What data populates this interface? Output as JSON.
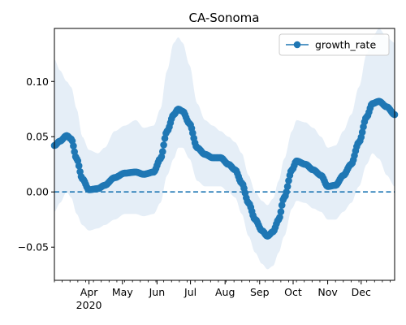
{
  "chart_data": {
    "type": "line",
    "title": "CA-Sonoma",
    "xlabel": "",
    "ylabel": "",
    "xlim": [
      "2020-03-01",
      "2020-12-31"
    ],
    "ylim": [
      -0.08,
      0.148
    ],
    "x_major_ticks": [
      {
        "date": "2020-04-01",
        "label": "Apr",
        "sublabel": "2020"
      },
      {
        "date": "2020-05-01",
        "label": "May",
        "sublabel": ""
      },
      {
        "date": "2020-06-01",
        "label": "Jun",
        "sublabel": ""
      },
      {
        "date": "2020-07-01",
        "label": "Jul",
        "sublabel": ""
      },
      {
        "date": "2020-08-01",
        "label": "Aug",
        "sublabel": ""
      },
      {
        "date": "2020-09-01",
        "label": "Sep",
        "sublabel": ""
      },
      {
        "date": "2020-10-01",
        "label": "Oct",
        "sublabel": ""
      },
      {
        "date": "2020-11-01",
        "label": "Nov",
        "sublabel": ""
      },
      {
        "date": "2020-12-01",
        "label": "Dec",
        "sublabel": ""
      }
    ],
    "y_ticks": [
      {
        "value": -0.05,
        "label": "−0.05"
      },
      {
        "value": 0.0,
        "label": "0.00"
      },
      {
        "value": 0.05,
        "label": "0.05"
      },
      {
        "value": 0.1,
        "label": "0.10"
      }
    ],
    "reference_line": {
      "y": 0.0,
      "style": "dashed",
      "color": "#1f77b4"
    },
    "legend": {
      "placement": "top-right",
      "entries": [
        "growth_rate"
      ]
    },
    "grid": false,
    "series": [
      {
        "name": "growth_rate",
        "color": "#1f77b4",
        "marker": "circle",
        "band_color": "#dce8f4",
        "knots": [
          {
            "x": "2020-03-01",
            "y": 0.042,
            "lo": -0.018,
            "hi": 0.12
          },
          {
            "x": "2020-03-06",
            "y": 0.046,
            "lo": -0.01,
            "hi": 0.11
          },
          {
            "x": "2020-03-12",
            "y": 0.051,
            "lo": 0.0,
            "hi": 0.1
          },
          {
            "x": "2020-03-16",
            "y": 0.048,
            "lo": -0.005,
            "hi": 0.095
          },
          {
            "x": "2020-03-21",
            "y": 0.03,
            "lo": -0.02,
            "hi": 0.075
          },
          {
            "x": "2020-03-26",
            "y": 0.012,
            "lo": -0.03,
            "hi": 0.05
          },
          {
            "x": "2020-04-01",
            "y": 0.002,
            "lo": -0.035,
            "hi": 0.038
          },
          {
            "x": "2020-04-09",
            "y": 0.003,
            "lo": -0.033,
            "hi": 0.035
          },
          {
            "x": "2020-04-15",
            "y": 0.006,
            "lo": -0.03,
            "hi": 0.04
          },
          {
            "x": "2020-04-24",
            "y": 0.013,
            "lo": -0.025,
            "hi": 0.055
          },
          {
            "x": "2020-05-03",
            "y": 0.017,
            "lo": -0.02,
            "hi": 0.06
          },
          {
            "x": "2020-05-13",
            "y": 0.018,
            "lo": -0.02,
            "hi": 0.065
          },
          {
            "x": "2020-05-20",
            "y": 0.016,
            "lo": -0.022,
            "hi": 0.058
          },
          {
            "x": "2020-05-29",
            "y": 0.018,
            "lo": -0.02,
            "hi": 0.06
          },
          {
            "x": "2020-06-04",
            "y": 0.03,
            "lo": -0.01,
            "hi": 0.075
          },
          {
            "x": "2020-06-10",
            "y": 0.055,
            "lo": 0.015,
            "hi": 0.11
          },
          {
            "x": "2020-06-16",
            "y": 0.07,
            "lo": 0.03,
            "hi": 0.135
          },
          {
            "x": "2020-06-20",
            "y": 0.075,
            "lo": 0.04,
            "hi": 0.14
          },
          {
            "x": "2020-06-24",
            "y": 0.073,
            "lo": 0.04,
            "hi": 0.135
          },
          {
            "x": "2020-06-30",
            "y": 0.062,
            "lo": 0.03,
            "hi": 0.115
          },
          {
            "x": "2020-07-07",
            "y": 0.04,
            "lo": 0.01,
            "hi": 0.08
          },
          {
            "x": "2020-07-14",
            "y": 0.034,
            "lo": 0.005,
            "hi": 0.065
          },
          {
            "x": "2020-07-21",
            "y": 0.031,
            "lo": 0.005,
            "hi": 0.06
          },
          {
            "x": "2020-07-28",
            "y": 0.031,
            "lo": 0.005,
            "hi": 0.055
          },
          {
            "x": "2020-08-04",
            "y": 0.025,
            "lo": 0.0,
            "hi": 0.05
          },
          {
            "x": "2020-08-10",
            "y": 0.02,
            "lo": -0.005,
            "hi": 0.045
          },
          {
            "x": "2020-08-16",
            "y": 0.008,
            "lo": -0.02,
            "hi": 0.035
          },
          {
            "x": "2020-08-22",
            "y": -0.01,
            "lo": -0.04,
            "hi": 0.015
          },
          {
            "x": "2020-08-28",
            "y": -0.025,
            "lo": -0.055,
            "hi": 0.0
          },
          {
            "x": "2020-09-03",
            "y": -0.035,
            "lo": -0.065,
            "hi": -0.008
          },
          {
            "x": "2020-09-08",
            "y": -0.04,
            "lo": -0.07,
            "hi": -0.012
          },
          {
            "x": "2020-09-13",
            "y": -0.036,
            "lo": -0.067,
            "hi": -0.006
          },
          {
            "x": "2020-09-18",
            "y": -0.025,
            "lo": -0.055,
            "hi": 0.01
          },
          {
            "x": "2020-09-23",
            "y": -0.005,
            "lo": -0.04,
            "hi": 0.03
          },
          {
            "x": "2020-09-30",
            "y": 0.02,
            "lo": -0.015,
            "hi": 0.055
          },
          {
            "x": "2020-10-04",
            "y": 0.028,
            "lo": -0.008,
            "hi": 0.065
          },
          {
            "x": "2020-10-12",
            "y": 0.025,
            "lo": -0.01,
            "hi": 0.063
          },
          {
            "x": "2020-10-19",
            "y": 0.02,
            "lo": -0.015,
            "hi": 0.058
          },
          {
            "x": "2020-10-26",
            "y": 0.015,
            "lo": -0.018,
            "hi": 0.05
          },
          {
            "x": "2020-11-01",
            "y": 0.005,
            "lo": -0.025,
            "hi": 0.04
          },
          {
            "x": "2020-11-08",
            "y": 0.006,
            "lo": -0.025,
            "hi": 0.042
          },
          {
            "x": "2020-11-15",
            "y": 0.015,
            "lo": -0.018,
            "hi": 0.055
          },
          {
            "x": "2020-11-22",
            "y": 0.025,
            "lo": -0.01,
            "hi": 0.07
          },
          {
            "x": "2020-11-29",
            "y": 0.045,
            "lo": 0.005,
            "hi": 0.095
          },
          {
            "x": "2020-12-06",
            "y": 0.068,
            "lo": 0.025,
            "hi": 0.125
          },
          {
            "x": "2020-12-11",
            "y": 0.08,
            "lo": 0.035,
            "hi": 0.14
          },
          {
            "x": "2020-12-17",
            "y": 0.082,
            "lo": 0.03,
            "hi": 0.148
          },
          {
            "x": "2020-12-24",
            "y": 0.077,
            "lo": 0.015,
            "hi": 0.14
          },
          {
            "x": "2020-12-31",
            "y": 0.07,
            "lo": 0.005,
            "hi": 0.135
          }
        ]
      }
    ]
  }
}
